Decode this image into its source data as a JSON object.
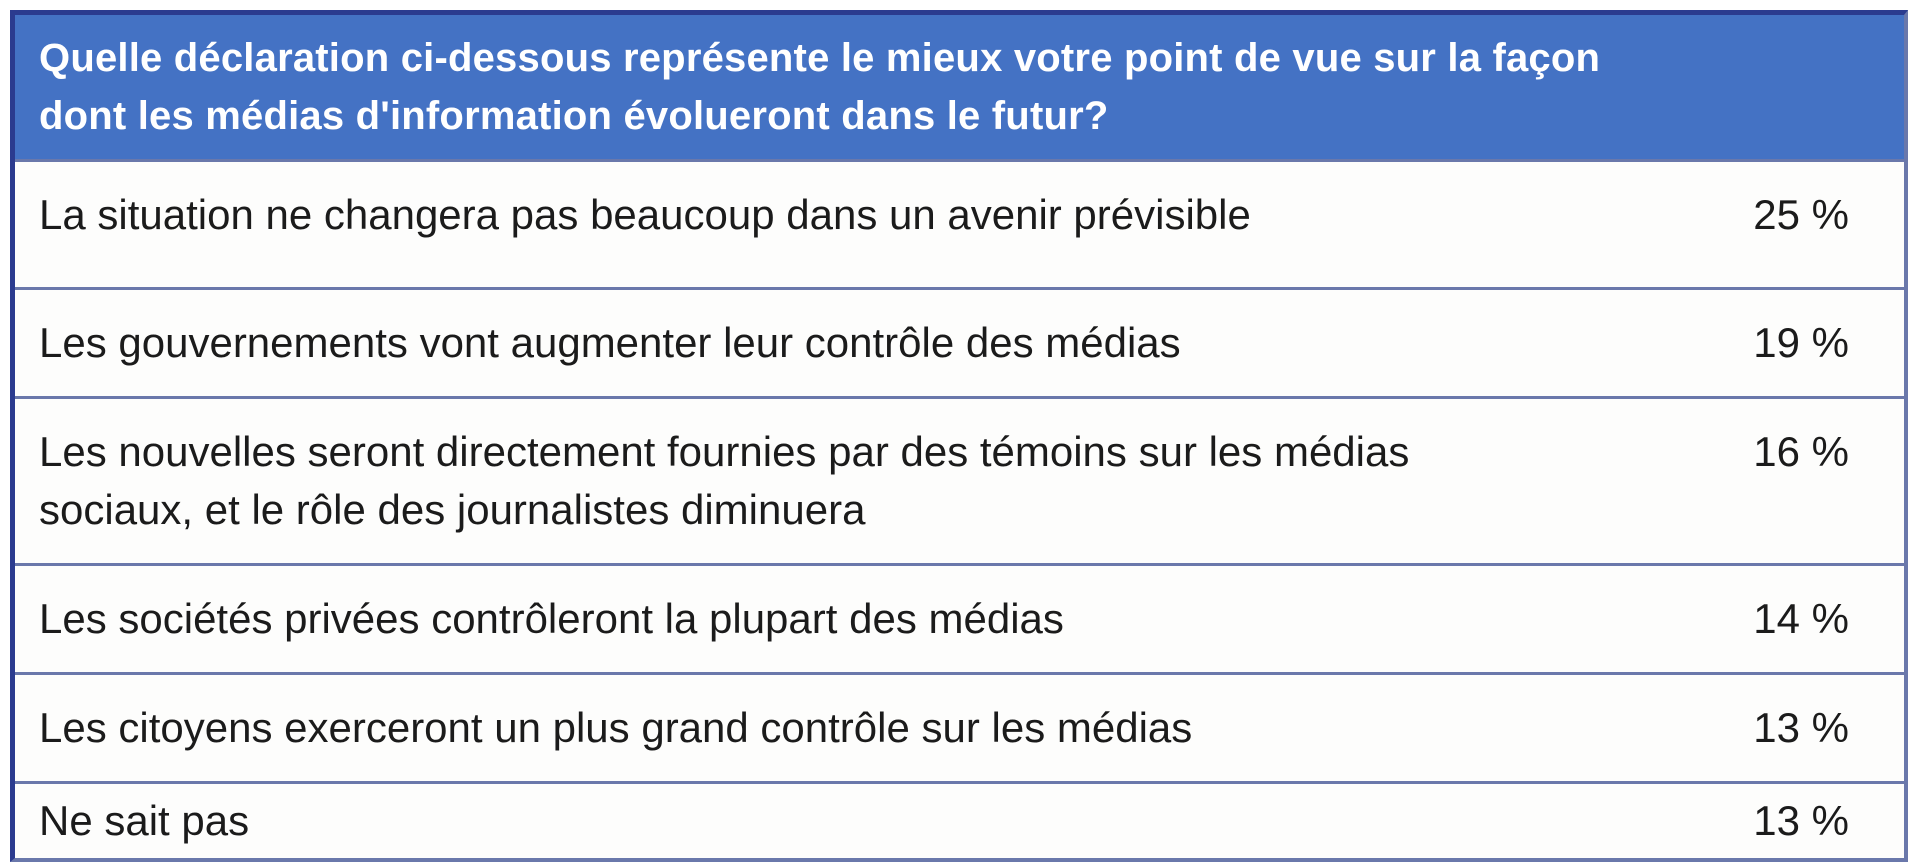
{
  "table": {
    "question": "Quelle déclaration ci-dessous représente le mieux votre point de vue sur la façon\ndont les médias d'information évolueront dans le futur?",
    "rows": [
      {
        "label": "La situation ne changera pas beaucoup dans un avenir prévisible",
        "value": "25 %"
      },
      {
        "label": "Les gouvernements vont augmenter leur contrôle des médias",
        "value": "19 %"
      },
      {
        "label": "Les nouvelles seront directement fournies par des témoins sur les médias sociaux, et le rôle des journalistes diminuera",
        "value": "16 %"
      },
      {
        "label": "Les sociétés privées contrôleront la plupart des médias",
        "value": "14 %"
      },
      {
        "label": "Les citoyens exerceront un plus grand contrôle sur les médias",
        "value": "13 %"
      },
      {
        "label": "Ne sait pas",
        "value": "13 %"
      }
    ],
    "colors": {
      "header_bg": "#4472C4",
      "header_text": "#FFFFFF",
      "border_dark": "#2B3B8F",
      "border_light": "#6A78AB",
      "row_bg": "#FDFDFC",
      "text": "#1B1B1B"
    }
  },
  "chart_data": {
    "type": "table",
    "title": "Quelle déclaration ci-dessous représente le mieux votre point de vue sur la façon dont les médias d'information évolueront dans le futur?",
    "categories": [
      "La situation ne changera pas beaucoup dans un avenir prévisible",
      "Les gouvernements vont augmenter leur contrôle des médias",
      "Les nouvelles seront directement fournies par des témoins sur les médias sociaux, et le rôle des journalistes diminuera",
      "Les sociétés privées contrôleront la plupart des médias",
      "Les citoyens exerceront un plus grand contrôle sur les médias",
      "Ne sait pas"
    ],
    "values": [
      25,
      19,
      16,
      14,
      13,
      13
    ],
    "unit": "%"
  }
}
